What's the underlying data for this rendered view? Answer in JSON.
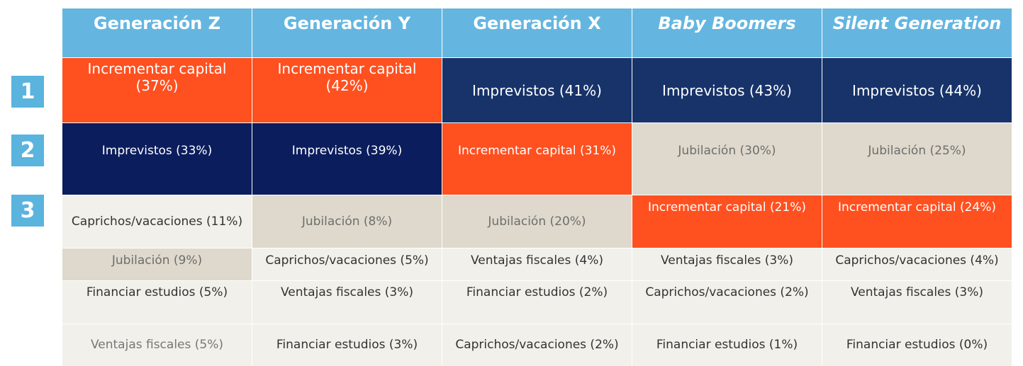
{
  "ranks": [
    "1",
    "2",
    "3"
  ],
  "headers": [
    "Generación Z",
    "Generación Y",
    "Generación X",
    "Baby Boomers",
    "Silent Generation"
  ],
  "rows": [
    [
      "Incrementar capital (37%)",
      "Incrementar  capital (42%)",
      "Imprevistos (41%)",
      "Imprevistos (43%)",
      "Imprevistos (44%)"
    ],
    [
      "Imprevistos (33%)",
      "Imprevistos (39%)",
      "Incrementar capital (31%)",
      "Jubilación (30%)",
      "Jubilación (25%)"
    ],
    [
      "Caprichos/vacaciones (11%)",
      "Jubilación (8%)",
      "Jubilación (20%)",
      "Incrementar capital (21%)",
      "Incrementar capital (24%)"
    ],
    [
      "Jubilación (9%)",
      "Caprichos/vacaciones (5%)",
      "Ventajas fiscales (4%)",
      "Ventajas fiscales (3%)",
      "Caprichos/vacaciones (4%)"
    ],
    [
      "Financiar estudios (5%)",
      "Ventajas fiscales (3%)",
      "Financiar estudios (2%)",
      "Caprichos/vacaciones (2%)",
      "Ventajas fiscales (3%)"
    ],
    [
      "Ventajas fiscales (5%)",
      "Financiar estudios (3%)",
      "Caprichos/vacaciones (2%)",
      "Financiar estudios (1%)",
      "Financiar estudios (0%)"
    ]
  ],
  "colors": {
    "header_blue": "#64b6e0",
    "rank_blue": "#5ab4de",
    "orange": "#ff5020",
    "navy": "#17336a",
    "navy_dark": "#0b1d5c",
    "tan": "#ded9cc",
    "light": "#f1f0ea"
  }
}
